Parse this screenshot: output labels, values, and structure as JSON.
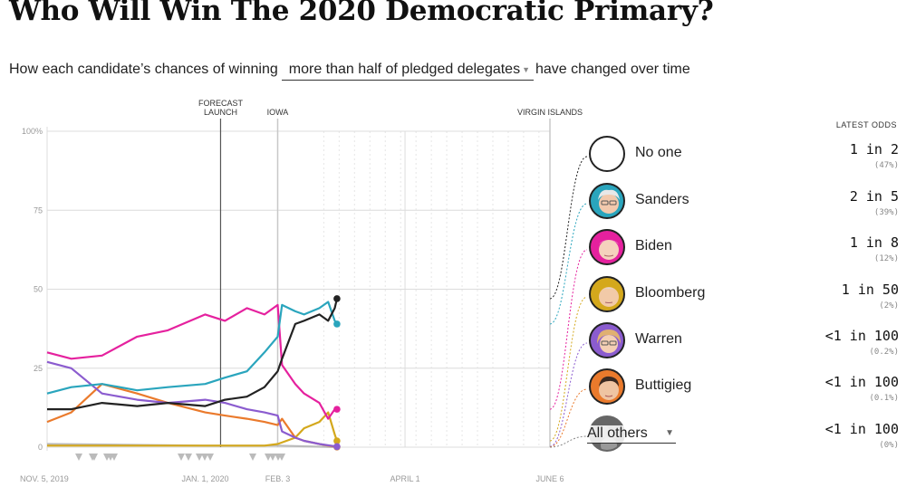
{
  "page": {
    "title": "Who Will Win The 2020 Democratic Primary?",
    "subtitle_before": "How each candidate’s chances of winning",
    "dropdown_value": "more than half of pledged delegates",
    "subtitle_after": "have changed over time",
    "latest_odds_header": "LATEST ODDS",
    "others_dropdown": "All others"
  },
  "chart_data": {
    "type": "line",
    "y_ticks": [
      "100%",
      "75",
      "50",
      "25",
      "0"
    ],
    "y_values": [
      100,
      75,
      50,
      25,
      0
    ],
    "ylim": [
      0,
      100
    ],
    "x_tick_labels": [
      {
        "date": "2019-11-05",
        "label": "NOV. 5, 2019"
      },
      {
        "date": "2020-01-01",
        "label": "JAN. 1, 2020"
      },
      {
        "date": "2020-02-03",
        "label": "FEB. 3"
      },
      {
        "date": "2020-04-01",
        "label": "APRIL 1"
      },
      {
        "date": "2020-06-06",
        "label": "JUNE 6"
      }
    ],
    "xlim": [
      "2019-10-21",
      "2020-06-06"
    ],
    "events": [
      {
        "date": "2020-01-08",
        "lines": [
          "FORECAST",
          "LAUNCH"
        ],
        "style": "dark"
      },
      {
        "date": "2020-02-03",
        "lines": [
          "IOWA"
        ],
        "style": "light"
      },
      {
        "date": "2020-06-06",
        "lines": [
          "VIRGIN ISLANDS"
        ],
        "style": "light"
      }
    ],
    "series": [
      {
        "name": "No one",
        "color": "#222222",
        "x": [
          "2019-10-21",
          "2019-11-01",
          "2019-11-15",
          "2019-12-01",
          "2019-12-15",
          "2020-01-01",
          "2020-01-10",
          "2020-01-20",
          "2020-01-28",
          "2020-02-03",
          "2020-02-05",
          "2020-02-11",
          "2020-02-15",
          "2020-02-22",
          "2020-02-26",
          "2020-02-29",
          "2020-03-01"
        ],
        "y": [
          12,
          12,
          14,
          13,
          14,
          13,
          15,
          16,
          19,
          24,
          28,
          39,
          40,
          42,
          40,
          44,
          47
        ]
      },
      {
        "name": "Sanders",
        "color": "#2aa5bd",
        "x": [
          "2019-10-21",
          "2019-11-01",
          "2019-11-15",
          "2019-12-01",
          "2019-12-15",
          "2020-01-01",
          "2020-01-10",
          "2020-01-20",
          "2020-01-28",
          "2020-02-03",
          "2020-02-05",
          "2020-02-11",
          "2020-02-15",
          "2020-02-22",
          "2020-02-26",
          "2020-02-29",
          "2020-03-01"
        ],
        "y": [
          17,
          19,
          20,
          18,
          19,
          20,
          22,
          24,
          30,
          35,
          45,
          43,
          42,
          44,
          46,
          40,
          39
        ]
      },
      {
        "name": "Biden",
        "color": "#e5219e",
        "x": [
          "2019-10-21",
          "2019-11-01",
          "2019-11-15",
          "2019-12-01",
          "2019-12-15",
          "2020-01-01",
          "2020-01-10",
          "2020-01-20",
          "2020-01-28",
          "2020-02-03",
          "2020-02-05",
          "2020-02-11",
          "2020-02-15",
          "2020-02-22",
          "2020-02-26",
          "2020-02-29",
          "2020-03-01"
        ],
        "y": [
          30,
          28,
          29,
          35,
          37,
          42,
          40,
          44,
          42,
          45,
          26,
          20,
          17,
          14,
          9,
          12,
          12
        ]
      },
      {
        "name": "Bloomberg",
        "color": "#d4a81c",
        "x": [
          "2019-10-21",
          "2019-12-01",
          "2020-01-01",
          "2020-01-28",
          "2020-02-03",
          "2020-02-11",
          "2020-02-15",
          "2020-02-22",
          "2020-02-26",
          "2020-02-29",
          "2020-03-01"
        ],
        "y": [
          0.5,
          0.5,
          0.5,
          0.5,
          1,
          3,
          6,
          8,
          11,
          4,
          2
        ]
      },
      {
        "name": "Warren",
        "color": "#8b5ccf",
        "x": [
          "2019-10-21",
          "2019-11-01",
          "2019-11-15",
          "2019-12-01",
          "2019-12-15",
          "2020-01-01",
          "2020-01-10",
          "2020-01-20",
          "2020-01-28",
          "2020-02-03",
          "2020-02-05",
          "2020-02-11",
          "2020-02-15",
          "2020-02-22",
          "2020-03-01"
        ],
        "y": [
          27,
          25,
          17,
          15,
          14,
          15,
          14,
          12,
          11,
          10,
          5,
          3,
          2,
          1,
          0.2
        ]
      },
      {
        "name": "Buttigieg",
        "color": "#ea7a2c",
        "x": [
          "2019-10-21",
          "2019-11-01",
          "2019-11-15",
          "2019-12-01",
          "2019-12-15",
          "2020-01-01",
          "2020-01-10",
          "2020-01-20",
          "2020-01-28",
          "2020-02-03",
          "2020-02-05",
          "2020-02-11",
          "2020-02-15",
          "2020-02-22",
          "2020-02-26",
          "2020-03-01"
        ],
        "y": [
          8,
          11,
          20,
          17,
          14,
          11,
          10,
          9,
          8,
          7,
          9,
          3,
          2,
          1,
          0.5,
          0.1
        ]
      },
      {
        "name": "All others",
        "color": "#bbbbbb",
        "x": [
          "2019-10-21",
          "2020-01-01",
          "2020-02-03",
          "2020-03-01"
        ],
        "y": [
          1,
          0.5,
          0.5,
          0
        ]
      }
    ],
    "legend": [
      {
        "name": "No one",
        "odds": "1 in 2",
        "pct": "(47%)",
        "color": "#222222",
        "face": "none"
      },
      {
        "name": "Sanders",
        "odds": "2 in 5",
        "pct": "(39%)",
        "color": "#2aa5bd",
        "face": "sanders"
      },
      {
        "name": "Biden",
        "odds": "1 in 8",
        "pct": "(12%)",
        "color": "#e5219e",
        "face": "biden"
      },
      {
        "name": "Bloomberg",
        "odds": "1 in 50",
        "pct": "(2%)",
        "color": "#d4a81c",
        "face": "bloomberg"
      },
      {
        "name": "Warren",
        "odds": "<1 in 100",
        "pct": "(0.2%)",
        "color": "#8b5ccf",
        "face": "warren"
      },
      {
        "name": "Buttigieg",
        "odds": "<1 in 100",
        "pct": "(0.1%)",
        "color": "#ea7a2c",
        "face": "buttigieg"
      },
      {
        "name": "All others",
        "odds": "<1 in 100",
        "pct": "(0%)",
        "color": "#888888",
        "face": "others"
      }
    ],
    "grid": true
  }
}
